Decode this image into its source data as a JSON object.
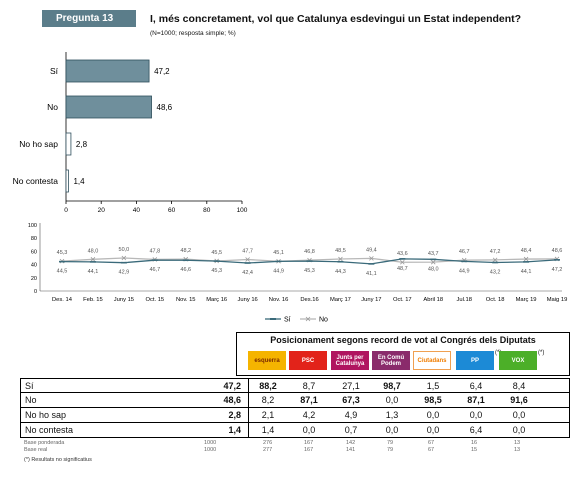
{
  "header": {
    "badge": "Pregunta 13",
    "question": "I, més concretament, vol que Catalunya esdevingui un Estat independent?",
    "sample_note": "(N=1000; resposta simple; %)"
  },
  "chart_data": [
    {
      "type": "bar",
      "orientation": "horizontal",
      "categories": [
        "Sí",
        "No",
        "No ho sap",
        "No contesta"
      ],
      "values": [
        47.2,
        48.6,
        2.8,
        1.4
      ],
      "value_labels": [
        "47,2",
        "48,6",
        "2,8",
        "1,4"
      ],
      "xlim": [
        0,
        100
      ],
      "xticks": [
        "0",
        "20",
        "40",
        "60",
        "80",
        "100"
      ],
      "colors": {
        "bar_main": "#6f8f9c",
        "bar_minor": "#ffffff",
        "bar_border": "#2f4f5c"
      }
    },
    {
      "type": "line",
      "x": [
        "Des. 14",
        "Feb. 15",
        "Juny 15",
        "Oct. 15",
        "Nov. 15",
        "Març 16",
        "Juny 16",
        "Nov. 16",
        "Des.16",
        "Març 17",
        "Juny 17",
        "Oct. 17",
        "Abril 18",
        "Jul.18",
        "Oct. 18",
        "Març 19",
        "Maig 19"
      ],
      "ylim": [
        0,
        100
      ],
      "yticks": [
        "0",
        "20",
        "40",
        "60",
        "80",
        "100"
      ],
      "legend": "bottom-center",
      "series": [
        {
          "name": "Sí",
          "color": "#3a6a7a",
          "marker": "dash",
          "values": [
            44.5,
            44.1,
            42.9,
            46.7,
            46.6,
            45.3,
            42.4,
            44.9,
            45.3,
            44.3,
            41.1,
            48.7,
            48.0,
            44.9,
            43.2,
            44.1,
            47.2
          ],
          "labels": [
            "44,5",
            "44,1",
            "42,9",
            "46,7",
            "46,6",
            "45,3",
            "42,4",
            "44,9",
            "45,3",
            "44,3",
            "41,1",
            "48,7",
            "48,0",
            "44,9",
            "43,2",
            "44,1",
            "47,2"
          ]
        },
        {
          "name": "No",
          "color": "#b8b8b8",
          "marker": "x",
          "values": [
            45.3,
            48.0,
            50.0,
            47.8,
            48.2,
            45.5,
            47.7,
            45.1,
            46.8,
            48.5,
            49.4,
            43.6,
            43.7,
            46.7,
            47.2,
            48.4,
            48.6
          ],
          "labels": [
            "45,3",
            "48,0",
            "50,0",
            "47,8",
            "48,2",
            "45,5",
            "47,7",
            "45,1",
            "46,8",
            "48,5",
            "49,4",
            "43,6",
            "43,7",
            "46,7",
            "47,2",
            "48,4",
            "48,6"
          ]
        }
      ]
    },
    {
      "type": "table",
      "title": "Posicionament segons record de  vot al Congrés dels Diputats",
      "parties": [
        {
          "name": "esquerra",
          "bg": "#f5b400",
          "fg": "#7a2a00",
          "star": ""
        },
        {
          "name": "PSC",
          "bg": "#e2231a",
          "fg": "#ffffff",
          "star": ""
        },
        {
          "name": "Junts per Catalunya",
          "bg": "#b01560",
          "fg": "#ffffff",
          "star": ""
        },
        {
          "name": "En Comú Podem",
          "bg": "#8a2b6b",
          "fg": "#ffffff",
          "star": ""
        },
        {
          "name": "Ciutadans",
          "bg": "#ffffff",
          "fg": "#f07d00",
          "star": ""
        },
        {
          "name": "PP",
          "bg": "#1c8ad6",
          "fg": "#ffffff",
          "star": "(*)"
        },
        {
          "name": "VOX",
          "bg": "#4caf28",
          "fg": "#ffffff",
          "star": "(*)"
        }
      ],
      "rows": [
        {
          "label": "Sí",
          "total": "47,2",
          "cells": [
            "88,2",
            "8,7",
            "27,1",
            "98,7",
            "1,5",
            "6,4",
            "8,4"
          ],
          "bold": [
            true,
            false,
            false,
            true,
            false,
            false,
            false
          ]
        },
        {
          "label": "No",
          "total": "48,6",
          "cells": [
            "8,2",
            "87,1",
            "67,3",
            "0,0",
            "98,5",
            "87,1",
            "91,6"
          ],
          "bold": [
            false,
            true,
            true,
            false,
            true,
            true,
            true
          ]
        },
        {
          "label": "No ho sap",
          "total": "2,8",
          "cells": [
            "2,1",
            "4,2",
            "4,9",
            "1,3",
            "0,0",
            "0,0",
            "0,0"
          ],
          "bold": [
            false,
            false,
            false,
            false,
            false,
            false,
            false
          ]
        },
        {
          "label": "No contesta",
          "total": "1,4",
          "cells": [
            "1,4",
            "0,0",
            "0,7",
            "0,0",
            "0,0",
            "6,4",
            "0,0"
          ],
          "bold": [
            false,
            false,
            false,
            false,
            false,
            false,
            false
          ]
        }
      ],
      "base_rows": [
        {
          "label": "Base ponderada",
          "total": "1000",
          "cells": [
            "276",
            "167",
            "142",
            "79",
            "67",
            "16",
            "13"
          ]
        },
        {
          "label": "Base real",
          "total": "1000",
          "cells": [
            "277",
            "167",
            "141",
            "79",
            "67",
            "15",
            "13"
          ]
        }
      ],
      "footnote": "(*) Resultats  no significatius"
    }
  ]
}
